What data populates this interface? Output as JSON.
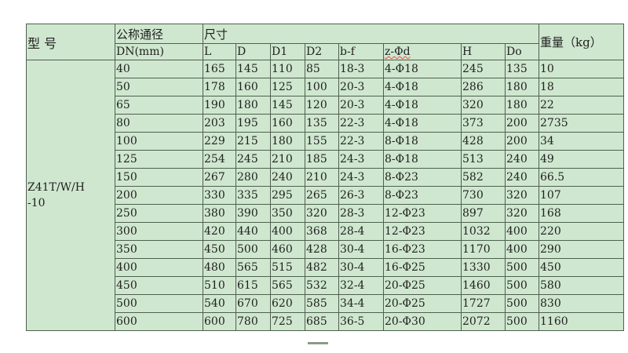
{
  "table": {
    "header": {
      "model": "型  号",
      "nominal": "公称通径",
      "dn_unit": "DN(mm)",
      "dimensions": "尺寸",
      "weight": "重量（kg）",
      "dim_columns": [
        "L",
        "D",
        "D1",
        "D2",
        "b-f",
        "z-Φd",
        "H",
        "Do"
      ]
    },
    "model_line1": "Z41T/W/H",
    "model_line2": "-10",
    "rows": [
      [
        "40",
        "165",
        "145",
        "110",
        "85",
        "18-3",
        "4-Φ18",
        "245",
        "135",
        "10"
      ],
      [
        "50",
        "178",
        "160",
        "125",
        "100",
        "20-3",
        "4-Φ18",
        "286",
        "180",
        "18"
      ],
      [
        "65",
        "190",
        "180",
        "145",
        "120",
        "20-3",
        "4-Φ18",
        "320",
        "180",
        "22"
      ],
      [
        "80",
        "203",
        "195",
        "160",
        "135",
        "22-3",
        "4-Φ18",
        "373",
        "200",
        "2735"
      ],
      [
        "100",
        "229",
        "215",
        "180",
        "155",
        "22-3",
        "8-Φ18",
        "428",
        "200",
        "34"
      ],
      [
        "125",
        "254",
        "245",
        "210",
        "185",
        "24-3",
        "8-Φ18",
        "513",
        "240",
        "49"
      ],
      [
        "150",
        "267",
        "280",
        "240",
        "210",
        "24-3",
        "8-Φ23",
        "582",
        "240",
        "66.5"
      ],
      [
        "200",
        "330",
        "335",
        "295",
        "265",
        "26-3",
        "8-Φ23",
        "730",
        "320",
        "107"
      ],
      [
        "250",
        "380",
        "390",
        "350",
        "320",
        "28-3",
        "12-Φ23",
        "897",
        "320",
        "168"
      ],
      [
        "300",
        "420",
        "440",
        "400",
        "368",
        "28-4",
        "12-Φ23",
        "1032",
        "400",
        "220"
      ],
      [
        "350",
        "450",
        "500",
        "460",
        "428",
        "30-4",
        "16-Φ23",
        "1170",
        "400",
        "290"
      ],
      [
        "400",
        "480",
        "565",
        "515",
        "482",
        "30-4",
        "16-Φ25",
        "1330",
        "500",
        "450"
      ],
      [
        "450",
        "510",
        "615",
        "565",
        "532",
        "32-4",
        "20-Φ25",
        "1460",
        "500",
        "580"
      ],
      [
        "500",
        "540",
        "670",
        "620",
        "585",
        "34-4",
        "20-Φ25",
        "1727",
        "500",
        "830"
      ],
      [
        "600",
        "600",
        "780",
        "725",
        "685",
        "36-5",
        "20-Φ30",
        "2072",
        "500",
        "1160"
      ]
    ]
  }
}
